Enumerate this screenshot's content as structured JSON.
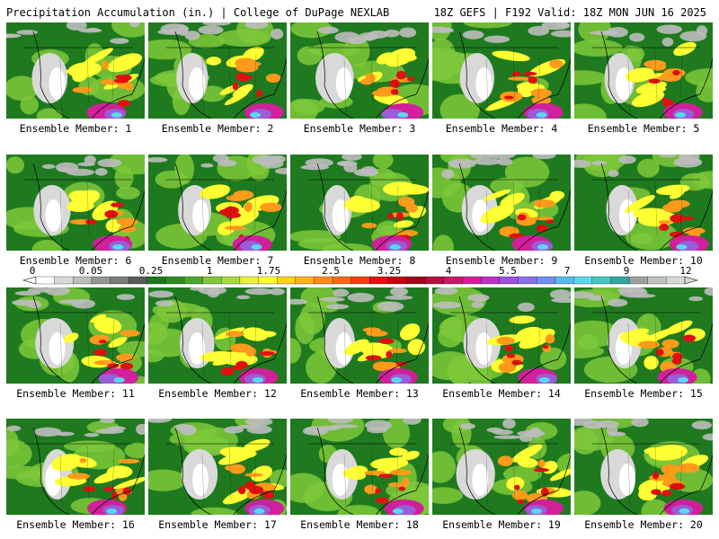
{
  "header": {
    "left": "Precipitation Accumulation (in.) | College of DuPage NEXLAB",
    "right": "18Z GEFS | F192 Valid: 18Z MON JUN 16 2025"
  },
  "colors": {
    "land_green": "#1f7a1f",
    "light_green": "#7ec83a",
    "yellow": "#ffff33",
    "orange": "#ff9a1a",
    "red": "#e01010",
    "magenta": "#d0209a",
    "purple": "#9a5cd8",
    "cyan": "#5ad8f0",
    "gray_low": "#c8c8c8"
  },
  "colorbar": {
    "labels": [
      "0",
      "0.05",
      "0.25",
      "1",
      "1.75",
      "2.5",
      "3.25",
      "4",
      "5.5",
      "7",
      "9",
      "12"
    ],
    "swatches": [
      "#ffffff",
      "#d9d9d9",
      "#bdbdbd",
      "#969696",
      "#7a7a7a",
      "#5a5a5a",
      "#1a7a1a",
      "#2a8f1f",
      "#4aa82a",
      "#7ec83a",
      "#a8dc3c",
      "#e8f040",
      "#ffff33",
      "#ffd21a",
      "#ffb01a",
      "#ff8a1a",
      "#ff6a10",
      "#f04010",
      "#e01010",
      "#c00010",
      "#a00018",
      "#b0103a",
      "#c81868",
      "#d0209a",
      "#c030c8",
      "#a050e0",
      "#8a70e8",
      "#7090f0",
      "#5ab8f0",
      "#5ad8f0",
      "#40c8c0",
      "#30a8a0",
      "#a0a0a0",
      "#c0c0c0",
      "#d8d8d8"
    ]
  },
  "members": [
    "Ensemble Member: 1",
    "Ensemble Member: 2",
    "Ensemble Member: 3",
    "Ensemble Member: 4",
    "Ensemble Member: 5",
    "Ensemble Member: 6",
    "Ensemble Member: 7",
    "Ensemble Member: 8",
    "Ensemble Member: 9",
    "Ensemble Member: 10",
    "Ensemble Member: 11",
    "Ensemble Member: 12",
    "Ensemble Member: 13",
    "Ensemble Member: 14",
    "Ensemble Member: 15",
    "Ensemble Member: 16",
    "Ensemble Member: 17",
    "Ensemble Member: 18",
    "Ensemble Member: 19",
    "Ensemble Member: 20"
  ]
}
